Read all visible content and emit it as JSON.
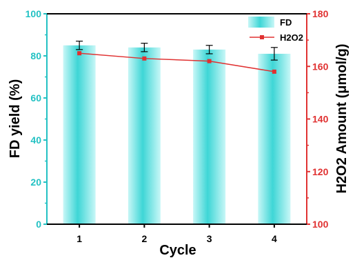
{
  "chart_data": {
    "type": "bar",
    "categories": [
      "1",
      "2",
      "3",
      "4"
    ],
    "xlabel": "Cycle",
    "ylabel_left": "FD yield (%)",
    "ylabel_right": "H2O2 Amount (μmol/g)",
    "ylim_left": [
      0,
      100
    ],
    "ylim_right": [
      100,
      180
    ],
    "yticks_left": [
      0,
      20,
      40,
      60,
      80,
      100
    ],
    "yticks_right": [
      100,
      120,
      140,
      160,
      180
    ],
    "grid": false,
    "legend_position": "top-right",
    "series": [
      {
        "name": "FD",
        "type": "bar",
        "axis": "left",
        "values": [
          85,
          84,
          83,
          81
        ],
        "errors": [
          2.0,
          2.0,
          2.0,
          3.0
        ]
      },
      {
        "name": "H2O2",
        "type": "line",
        "axis": "right",
        "values": [
          165,
          163,
          162,
          158
        ]
      }
    ],
    "colors": {
      "bar": "#3ed6d6",
      "bar_light": "#c8f7f7",
      "left_axis": "#22c1c3",
      "right_axis": "#e03131",
      "line": "#e03131"
    }
  }
}
